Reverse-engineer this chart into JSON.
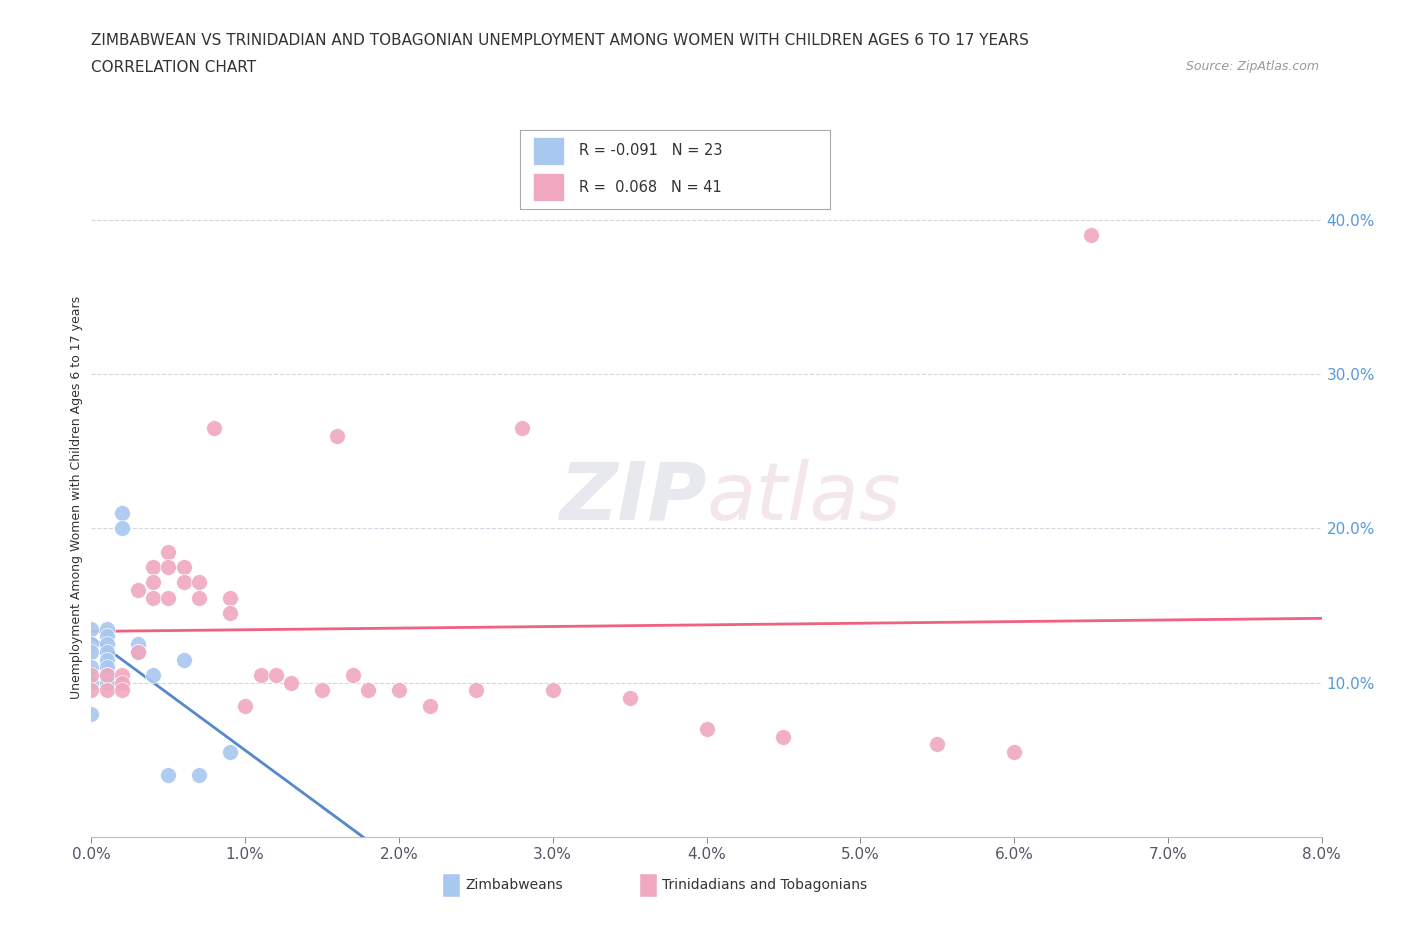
{
  "title_line1": "ZIMBABWEAN VS TRINIDADIAN AND TOBAGONIAN UNEMPLOYMENT AMONG WOMEN WITH CHILDREN AGES 6 TO 17 YEARS",
  "title_line2": "CORRELATION CHART",
  "source_text": "Source: ZipAtlas.com",
  "ylabel": "Unemployment Among Women with Children Ages 6 to 17 years",
  "x_min": 0.0,
  "x_max": 0.08,
  "y_min": 0.0,
  "y_max": 0.44,
  "y_ticks": [
    0.1,
    0.2,
    0.3,
    0.4
  ],
  "x_ticks": [
    0.0,
    0.01,
    0.02,
    0.03,
    0.04,
    0.05,
    0.06,
    0.07,
    0.08
  ],
  "zimbabwe_R": -0.091,
  "zimbabwe_N": 23,
  "trinidad_R": 0.068,
  "trinidad_N": 41,
  "zimbabwe_color": "#a8c8f0",
  "trinidad_color": "#f0a8c0",
  "zimbabwe_line_color": "#5588cc",
  "trinidad_line_color": "#f06080",
  "dashed_line_color": "#88aadd",
  "watermark_zip": "ZIP",
  "watermark_atlas": "atlas",
  "zimbabwe_x": [
    0.0,
    0.0,
    0.0,
    0.0,
    0.0,
    0.0,
    0.001,
    0.001,
    0.001,
    0.001,
    0.001,
    0.001,
    0.001,
    0.001,
    0.002,
    0.002,
    0.003,
    0.003,
    0.004,
    0.005,
    0.006,
    0.007,
    0.009
  ],
  "zimbabwe_y": [
    0.135,
    0.125,
    0.12,
    0.11,
    0.1,
    0.08,
    0.135,
    0.13,
    0.125,
    0.12,
    0.115,
    0.11,
    0.105,
    0.1,
    0.21,
    0.2,
    0.125,
    0.12,
    0.105,
    0.04,
    0.115,
    0.04,
    0.055
  ],
  "trinidad_x": [
    0.0,
    0.0,
    0.001,
    0.001,
    0.002,
    0.002,
    0.002,
    0.003,
    0.003,
    0.004,
    0.004,
    0.004,
    0.005,
    0.005,
    0.005,
    0.006,
    0.006,
    0.007,
    0.007,
    0.008,
    0.009,
    0.009,
    0.01,
    0.011,
    0.012,
    0.013,
    0.015,
    0.016,
    0.017,
    0.018,
    0.02,
    0.022,
    0.025,
    0.028,
    0.03,
    0.035,
    0.04,
    0.045,
    0.055,
    0.06,
    0.065
  ],
  "trinidad_y": [
    0.105,
    0.095,
    0.105,
    0.095,
    0.105,
    0.1,
    0.095,
    0.16,
    0.12,
    0.175,
    0.165,
    0.155,
    0.185,
    0.175,
    0.155,
    0.175,
    0.165,
    0.165,
    0.155,
    0.265,
    0.155,
    0.145,
    0.085,
    0.105,
    0.105,
    0.1,
    0.095,
    0.26,
    0.105,
    0.095,
    0.095,
    0.085,
    0.095,
    0.265,
    0.095,
    0.09,
    0.07,
    0.065,
    0.06,
    0.055,
    0.39
  ],
  "background_color": "#ffffff",
  "grid_color": "#ccccdd",
  "title_fontsize": 11,
  "ylabel_fontsize": 9,
  "tick_fontsize": 11,
  "legend_fontsize": 11,
  "source_fontsize": 9
}
